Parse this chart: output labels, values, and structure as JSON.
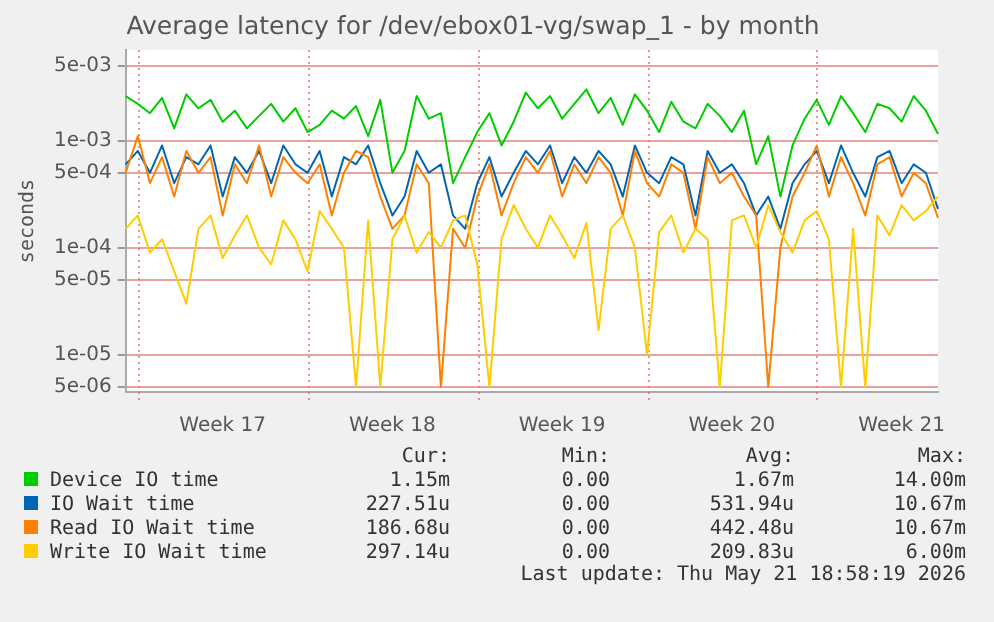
{
  "chart_data": {
    "type": "line",
    "title": "Average latency for /dev/ebox01-vg/swap_1 - by month",
    "ylabel": "seconds",
    "log": "y",
    "grid": true,
    "legend": "bottom",
    "marker": "none",
    "line_style": "solid",
    "categories": [
      null,
      null,
      null,
      null,
      null,
      null,
      null,
      null,
      "Week 17",
      null,
      null,
      null,
      null,
      null,
      null,
      null,
      null,
      null,
      null,
      null,
      null,
      null,
      "Week 18",
      null,
      null,
      null,
      null,
      null,
      null,
      null,
      null,
      null,
      null,
      null,
      null,
      null,
      "Week 19",
      null,
      null,
      null,
      null,
      null,
      null,
      null,
      null,
      null,
      null,
      null,
      null,
      null,
      "Week 20",
      null,
      null,
      null,
      null,
      null,
      null,
      null,
      null,
      null,
      null,
      null,
      null,
      null,
      "Week 21",
      null,
      null,
      null
    ],
    "ylim": [
      4.5e-06,
      0.007
    ],
    "yticks": [
      {
        "value": 5e-06,
        "label": "5e-06"
      },
      {
        "value": 1e-05,
        "label": "1e-05"
      },
      {
        "value": 5e-05,
        "label": "5e-05"
      },
      {
        "value": 0.0001,
        "label": "1e-04"
      },
      {
        "value": 0.0005,
        "label": "5e-04"
      },
      {
        "value": 0.001,
        "label": "1e-03"
      },
      {
        "value": 0.005,
        "label": "5e-03"
      }
    ],
    "annotations": [
      "Cur:",
      "Min:",
      "Avg:",
      "Max:",
      "1.15m",
      "0.00",
      "1.67m",
      "14.00m",
      "227.51u",
      "0.00",
      "531.94u",
      "10.67m",
      "186.68u",
      "0.00",
      "442.48u",
      "10.67m",
      "297.14u",
      "0.00",
      "209.83u",
      "6.00m",
      "Last update: Thu May 21 18:58:19 2026"
    ],
    "series": [
      {
        "name": "Device IO time",
        "color": "#00cc00",
        "values": [
          0.0026,
          0.0022,
          0.0018,
          0.0025,
          0.0013,
          0.0027,
          0.002,
          0.0024,
          0.0015,
          0.0019,
          0.0013,
          0.0017,
          0.0022,
          0.0015,
          0.002,
          0.0012,
          0.0014,
          0.0019,
          0.0016,
          0.0021,
          0.0011,
          0.0024,
          0.0005,
          0.0008,
          0.0026,
          0.0016,
          0.0018,
          0.0004,
          0.0007,
          0.0012,
          0.0018,
          0.0009,
          0.0015,
          0.0028,
          0.002,
          0.0026,
          0.0016,
          0.0022,
          0.003,
          0.0018,
          0.0025,
          0.0014,
          0.0027,
          0.0019,
          0.0012,
          0.0023,
          0.0015,
          0.0013,
          0.0022,
          0.0017,
          0.0012,
          0.0019,
          0.0006,
          0.0011,
          0.0003,
          0.0009,
          0.0016,
          0.0024,
          0.0014,
          0.0026,
          0.0018,
          0.0012,
          0.0022,
          0.002,
          0.0015,
          0.0026,
          0.0019,
          0.00115
        ]
      },
      {
        "name": "IO Wait time",
        "color": "#0066b3",
        "values": [
          0.0006,
          0.0008,
          0.0005,
          0.0009,
          0.0004,
          0.0007,
          0.0006,
          0.0009,
          0.0003,
          0.0007,
          0.0005,
          0.0008,
          0.0004,
          0.0009,
          0.0006,
          0.0005,
          0.0008,
          0.0003,
          0.0007,
          0.0006,
          0.0009,
          0.0004,
          0.0002,
          0.0003,
          0.0008,
          0.0005,
          0.0006,
          0.0002,
          0.00015,
          0.0004,
          0.0007,
          0.0003,
          0.0005,
          0.0008,
          0.0006,
          0.0009,
          0.0004,
          0.0007,
          0.0005,
          0.0008,
          0.0006,
          0.0003,
          0.0009,
          0.0005,
          0.0004,
          0.0007,
          0.0006,
          0.0002,
          0.0008,
          0.0005,
          0.0006,
          0.0004,
          0.0002,
          0.0003,
          0.00015,
          0.0004,
          0.0006,
          0.0008,
          0.0004,
          0.0009,
          0.0005,
          0.0003,
          0.0007,
          0.0008,
          0.0004,
          0.0006,
          0.0005,
          0.00023
        ]
      },
      {
        "name": "Read IO Wait time",
        "color": "#ff8000",
        "values": [
          0.0005,
          0.0011,
          0.0004,
          0.0007,
          0.0003,
          0.0008,
          0.0005,
          0.0007,
          0.0002,
          0.0006,
          0.0004,
          0.0009,
          0.0003,
          0.0007,
          0.0005,
          0.0004,
          0.0006,
          0.0002,
          0.0005,
          0.0008,
          0.0007,
          0.0003,
          0.00015,
          0.0002,
          0.0006,
          0.0004,
          5e-06,
          0.00015,
          0.0001,
          0.0003,
          0.0006,
          0.0002,
          0.0004,
          0.0007,
          0.0005,
          0.0008,
          0.0003,
          0.0006,
          0.0004,
          0.0007,
          0.0005,
          0.0002,
          0.0008,
          0.0004,
          0.0003,
          0.0006,
          0.0005,
          0.00015,
          0.0007,
          0.0004,
          0.0005,
          0.0003,
          0.0002,
          5e-06,
          0.0001,
          0.0003,
          0.0005,
          0.0009,
          0.0003,
          0.0007,
          0.0004,
          0.0002,
          0.0006,
          0.0007,
          0.0003,
          0.0005,
          0.0004,
          0.00019
        ]
      },
      {
        "name": "Write IO Wait time",
        "color": "#ffcc00",
        "values": [
          0.00015,
          0.0002,
          9e-05,
          0.00012,
          6e-05,
          3e-05,
          0.00015,
          0.0002,
          8e-05,
          0.00013,
          0.0002,
          0.0001,
          7e-05,
          0.00018,
          0.00012,
          6e-05,
          0.00022,
          0.00015,
          0.0001,
          5e-06,
          0.00018,
          5e-06,
          0.00012,
          0.0002,
          9e-05,
          0.00014,
          0.0001,
          0.00018,
          0.0002,
          7e-05,
          5e-06,
          0.00012,
          0.00025,
          0.00015,
          0.0001,
          0.0002,
          0.00013,
          8e-05,
          0.00017,
          1.7e-05,
          0.00015,
          0.0002,
          0.0001,
          1e-05,
          0.00014,
          0.0002,
          9e-05,
          0.00015,
          0.00012,
          5e-06,
          0.00018,
          0.0002,
          0.0001,
          0.00025,
          0.00014,
          9e-05,
          0.00018,
          0.00022,
          0.00012,
          5e-06,
          0.00015,
          5e-06,
          0.0002,
          0.00013,
          0.00025,
          0.00018,
          0.00022,
          0.0003
        ]
      }
    ]
  }
}
